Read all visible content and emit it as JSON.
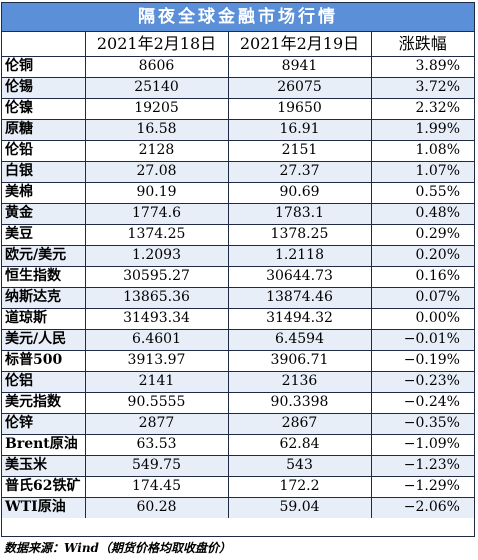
{
  "title": "隔夜全球金融市场行情",
  "headers": [
    "",
    "2021年2月18日",
    "2021年2月19日",
    "涨跌幅"
  ],
  "rows": [
    {
      "name": "伦铜",
      "v1": "8606",
      "v2": "8941",
      "chg": "3.89%"
    },
    {
      "name": "伦锡",
      "v1": "25140",
      "v2": "26075",
      "chg": "3.72%"
    },
    {
      "name": "伦镍",
      "v1": "19205",
      "v2": "19650",
      "chg": "2.32%"
    },
    {
      "name": "原糖",
      "v1": "16.58",
      "v2": "16.91",
      "chg": "1.99%"
    },
    {
      "name": "伦铅",
      "v1": "2128",
      "v2": "2151",
      "chg": "1.08%"
    },
    {
      "name": "白银",
      "v1": "27.08",
      "v2": "27.37",
      "chg": "1.07%"
    },
    {
      "name": "美棉",
      "v1": "90.19",
      "v2": "90.69",
      "chg": "0.55%"
    },
    {
      "name": "黄金",
      "v1": "1774.6",
      "v2": "1783.1",
      "chg": "0.48%"
    },
    {
      "name": "美豆",
      "v1": "1374.25",
      "v2": "1378.25",
      "chg": "0.29%"
    },
    {
      "name": "欧元/美元",
      "v1": "1.2093",
      "v2": "1.2118",
      "chg": "0.20%"
    },
    {
      "name": "恒生指数",
      "v1": "30595.27",
      "v2": "30644.73",
      "chg": "0.16%"
    },
    {
      "name": "纳斯达克",
      "v1": "13865.36",
      "v2": "13874.46",
      "chg": "0.07%"
    },
    {
      "name": "道琼斯",
      "v1": "31493.34",
      "v2": "31494.32",
      "chg": "0.00%"
    },
    {
      "name": "美元/人民",
      "v1": "6.4601",
      "v2": "6.4594",
      "chg": "−0.01%"
    },
    {
      "name": "标普500",
      "v1": "3913.97",
      "v2": "3906.71",
      "chg": "−0.19%"
    },
    {
      "name": "伦铝",
      "v1": "2141",
      "v2": "2136",
      "chg": "−0.23%"
    },
    {
      "name": "美元指数",
      "v1": "90.5555",
      "v2": "90.3398",
      "chg": "−0.24%"
    },
    {
      "name": "伦锌",
      "v1": "2877",
      "v2": "2867",
      "chg": "−0.35%"
    },
    {
      "name": "Brent原油",
      "v1": "63.53",
      "v2": "62.84",
      "chg": "−1.09%"
    },
    {
      "name": "美玉米",
      "v1": "549.75",
      "v2": "543",
      "chg": "−1.23%"
    },
    {
      "name": "普氏62铁矿",
      "v1": "174.45",
      "v2": "172.2",
      "chg": "−1.29%"
    },
    {
      "name": "WTI原油",
      "v1": "60.28",
      "v2": "59.04",
      "chg": "−2.06%"
    }
  ],
  "footer": "数据来源：Wind（期货价格均取收盘价）",
  "colors": {
    "title_bg": "#5b8fd8",
    "border": "#1f2a44",
    "shade": "#e8eef8"
  }
}
